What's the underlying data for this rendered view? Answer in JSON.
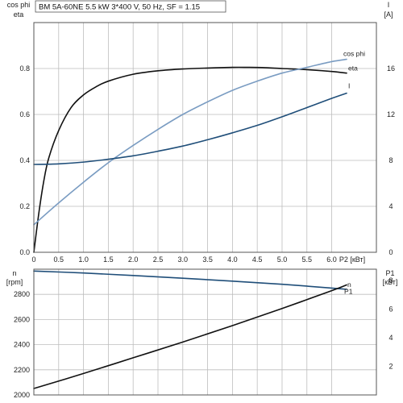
{
  "chart_data": [
    {
      "type": "line",
      "title": "BM 5A-60NE  5.5 kW  3*400 V, 50 Hz, SF = 1.15",
      "ylabel_left": [
        "cos phi",
        "eta"
      ],
      "ylabel_right": [
        "I",
        "[A]"
      ],
      "xlabel": "P2 [кВт]",
      "xlim": [
        0,
        6.9
      ],
      "ylim_left": [
        0,
        1.0
      ],
      "ylim_right": [
        0,
        20
      ],
      "x_ticks": [
        "0",
        "0.5",
        "1.0",
        "1.5",
        "2.0",
        "2.5",
        "3.0",
        "3.5",
        "4.0",
        "4.5",
        "5.0",
        "5.5",
        "6.0"
      ],
      "x_tick_values": [
        0,
        0.5,
        1.0,
        1.5,
        2.0,
        2.5,
        3.0,
        3.5,
        4.0,
        4.5,
        5.0,
        5.5,
        6.0
      ],
      "y_ticks_left": [
        "0.0",
        "0.2",
        "0.4",
        "0.6",
        "0.8"
      ],
      "y_tick_values_left": [
        0,
        0.2,
        0.4,
        0.6,
        0.8
      ],
      "y_ticks_right": [
        "0",
        "4",
        "8",
        "12",
        "16"
      ],
      "y_tick_values_right": [
        0,
        4,
        8,
        12,
        16
      ],
      "grid": true,
      "series": [
        {
          "name": "eta",
          "axis": "left",
          "color": "#111111",
          "x": [
            0,
            0.1,
            0.2,
            0.3,
            0.5,
            0.75,
            1.0,
            1.25,
            1.5,
            2.0,
            2.5,
            3.0,
            3.5,
            4.0,
            4.3,
            4.6,
            5.0,
            5.5,
            6.0,
            6.3
          ],
          "y": [
            0,
            0.17,
            0.31,
            0.41,
            0.53,
            0.63,
            0.685,
            0.72,
            0.745,
            0.775,
            0.79,
            0.798,
            0.802,
            0.805,
            0.805,
            0.804,
            0.8,
            0.795,
            0.787,
            0.78
          ]
        },
        {
          "name": "cos phi",
          "axis": "left",
          "color": "#7a9cc2",
          "x": [
            0,
            0.5,
            1.0,
            1.5,
            2.0,
            2.5,
            3.0,
            3.5,
            4.0,
            4.5,
            5.0,
            5.5,
            6.0,
            6.3
          ],
          "y": [
            0.12,
            0.215,
            0.305,
            0.39,
            0.465,
            0.535,
            0.6,
            0.655,
            0.705,
            0.745,
            0.78,
            0.805,
            0.83,
            0.84
          ]
        },
        {
          "name": "I",
          "axis": "right",
          "color": "#1f4e79",
          "x": [
            0,
            0.5,
            1.0,
            1.5,
            2.0,
            2.5,
            3.0,
            3.5,
            4.0,
            4.5,
            5.0,
            5.5,
            6.0,
            6.3
          ],
          "y": [
            7.65,
            7.7,
            7.85,
            8.1,
            8.4,
            8.8,
            9.25,
            9.8,
            10.4,
            11.05,
            11.8,
            12.6,
            13.4,
            13.85
          ]
        }
      ]
    },
    {
      "type": "line",
      "ylabel_left": [
        "n",
        "[rpm]"
      ],
      "ylabel_right": [
        "P1",
        "[кВт]"
      ],
      "xlim": [
        0,
        6.9
      ],
      "ylim_left": [
        2000,
        3000
      ],
      "ylim_right": [
        0,
        8.8
      ],
      "y_ticks_left": [
        "2000",
        "2200",
        "2400",
        "2600",
        "2800"
      ],
      "y_tick_values_left": [
        2000,
        2200,
        2400,
        2600,
        2800
      ],
      "y_ticks_right": [
        "2",
        "4",
        "6",
        "8"
      ],
      "y_tick_values_right": [
        2,
        4,
        6,
        8
      ],
      "grid": true,
      "series": [
        {
          "name": "n",
          "axis": "left",
          "color": "#1f4e79",
          "x": [
            0,
            1.0,
            2.0,
            3.0,
            4.0,
            5.0,
            6.0,
            6.3
          ],
          "y": [
            2985,
            2970,
            2950,
            2928,
            2905,
            2880,
            2850,
            2840
          ]
        },
        {
          "name": "P1",
          "axis": "right",
          "color": "#111111",
          "x": [
            0,
            1.0,
            2.0,
            3.0,
            4.0,
            5.0,
            6.0,
            6.3
          ],
          "y": [
            0.45,
            1.5,
            2.6,
            3.7,
            4.85,
            6.05,
            7.3,
            7.7
          ]
        }
      ]
    }
  ]
}
